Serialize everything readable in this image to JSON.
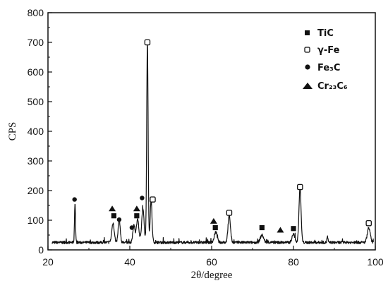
{
  "chart_data": {
    "type": "line",
    "xlabel": "2θ/degree",
    "ylabel": "CPS",
    "xlim": [
      20,
      100
    ],
    "ylim": [
      0,
      800
    ],
    "xticks": [
      "20",
      "40",
      "60",
      "80",
      "100"
    ],
    "yticks": [
      "0",
      "100",
      "200",
      "300",
      "400",
      "500",
      "600",
      "700",
      "800"
    ],
    "legend": [
      {
        "label": "TiC",
        "marker": "square-filled"
      },
      {
        "label": "γ-Fe",
        "marker": "square-open"
      },
      {
        "label": "Fe₃C",
        "marker": "circle-filled"
      },
      {
        "label": "Cr₂₃C₆",
        "marker": "triangle-filled"
      }
    ],
    "baseline": 25,
    "peaks": [
      {
        "x": 26.6,
        "y": 135,
        "w": 0.12
      },
      {
        "x": 35.9,
        "y": 65,
        "w": 0.3
      },
      {
        "x": 37.4,
        "y": 80,
        "w": 0.25
      },
      {
        "x": 41.0,
        "y": 60,
        "w": 0.25
      },
      {
        "x": 41.9,
        "y": 80,
        "w": 0.3
      },
      {
        "x": 43.2,
        "y": 110,
        "w": 0.3
      },
      {
        "x": 44.3,
        "y": 680,
        "w": 0.17
      },
      {
        "x": 45.2,
        "y": 145,
        "w": 0.22
      },
      {
        "x": 61.0,
        "y": 35,
        "w": 0.35
      },
      {
        "x": 64.3,
        "y": 90,
        "w": 0.3
      },
      {
        "x": 72.3,
        "y": 25,
        "w": 0.4
      },
      {
        "x": 80.0,
        "y": 28,
        "w": 0.35
      },
      {
        "x": 81.6,
        "y": 185,
        "w": 0.25
      },
      {
        "x": 88.3,
        "y": 20,
        "w": 0.12
      },
      {
        "x": 98.4,
        "y": 50,
        "w": 0.35
      }
    ],
    "phase_markers": [
      {
        "phase": "Fe₃C",
        "x": 26.5,
        "y": 170
      },
      {
        "phase": "Cr₂₃C₆",
        "x": 35.7,
        "y": 140
      },
      {
        "phase": "TiC",
        "x": 36.1,
        "y": 115
      },
      {
        "phase": "Fe₃C",
        "x": 37.4,
        "y": 102
      },
      {
        "phase": "Fe₃C",
        "x": 40.5,
        "y": 75
      },
      {
        "phase": "TiC",
        "x": 41.7,
        "y": 115
      },
      {
        "phase": "Cr₂₃C₆",
        "x": 41.7,
        "y": 140
      },
      {
        "phase": "Fe₃C",
        "x": 43.0,
        "y": 175
      },
      {
        "phase": "γ-Fe",
        "x": 44.3,
        "y": 700
      },
      {
        "phase": "γ-Fe",
        "x": 45.6,
        "y": 170
      },
      {
        "phase": "Cr₂₃C₆",
        "x": 60.5,
        "y": 98
      },
      {
        "phase": "TiC",
        "x": 60.9,
        "y": 75
      },
      {
        "phase": "γ-Fe",
        "x": 64.3,
        "y": 125
      },
      {
        "phase": "TiC",
        "x": 72.3,
        "y": 75
      },
      {
        "phase": "Cr₂₃C₆",
        "x": 76.8,
        "y": 68
      },
      {
        "phase": "TiC",
        "x": 80.0,
        "y": 72
      },
      {
        "phase": "γ-Fe",
        "x": 81.6,
        "y": 212
      },
      {
        "phase": "γ-Fe",
        "x": 98.4,
        "y": 90
      }
    ]
  }
}
